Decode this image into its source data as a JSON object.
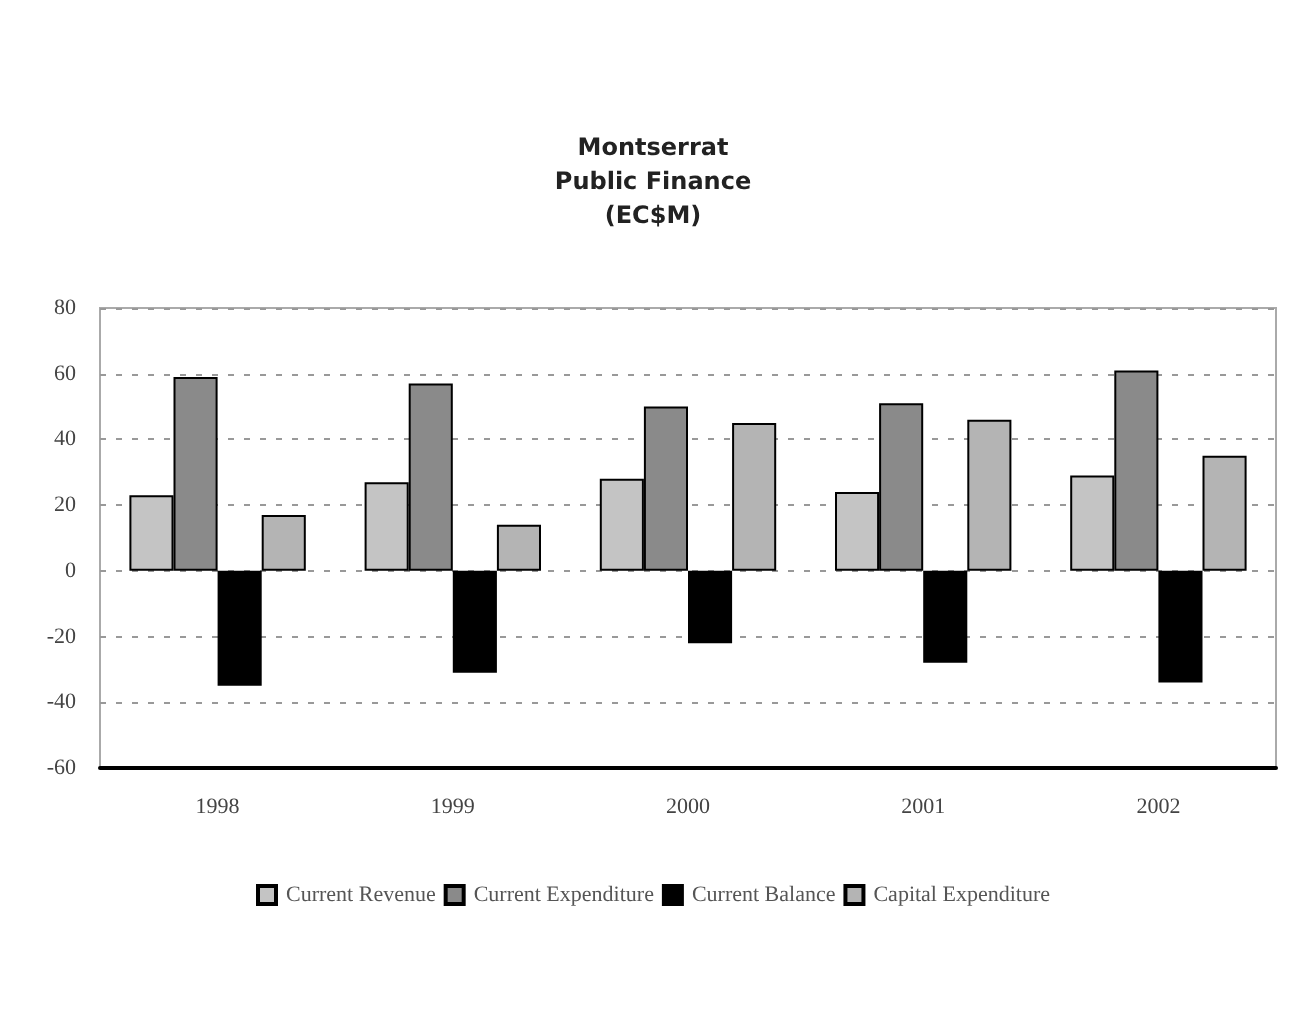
{
  "chart_data": {
    "type": "bar",
    "title": "Montserrat\nPublic Finance\n(EC$M)",
    "categories": [
      "1998",
      "1999",
      "2000",
      "2001",
      "2002"
    ],
    "series": [
      {
        "name": "Current Revenue",
        "color": "#c4c4c4",
        "values": [
          23,
          27,
          28,
          24,
          29
        ]
      },
      {
        "name": "Current Expenditure",
        "color": "#8a8a8a",
        "values": [
          59,
          57,
          50,
          51,
          61
        ]
      },
      {
        "name": "Current Balance",
        "color": "#000000",
        "values": [
          -35,
          -31,
          -22,
          -28,
          -34
        ]
      },
      {
        "name": "Capital Expenditure",
        "color": "#b4b4b4",
        "values": [
          17,
          14,
          45,
          46,
          35
        ]
      }
    ],
    "ylim": [
      -60,
      80
    ],
    "yticks": [
      -60,
      -40,
      -20,
      0,
      20,
      40,
      60,
      80
    ],
    "grid": "y",
    "legend": "bottom"
  }
}
